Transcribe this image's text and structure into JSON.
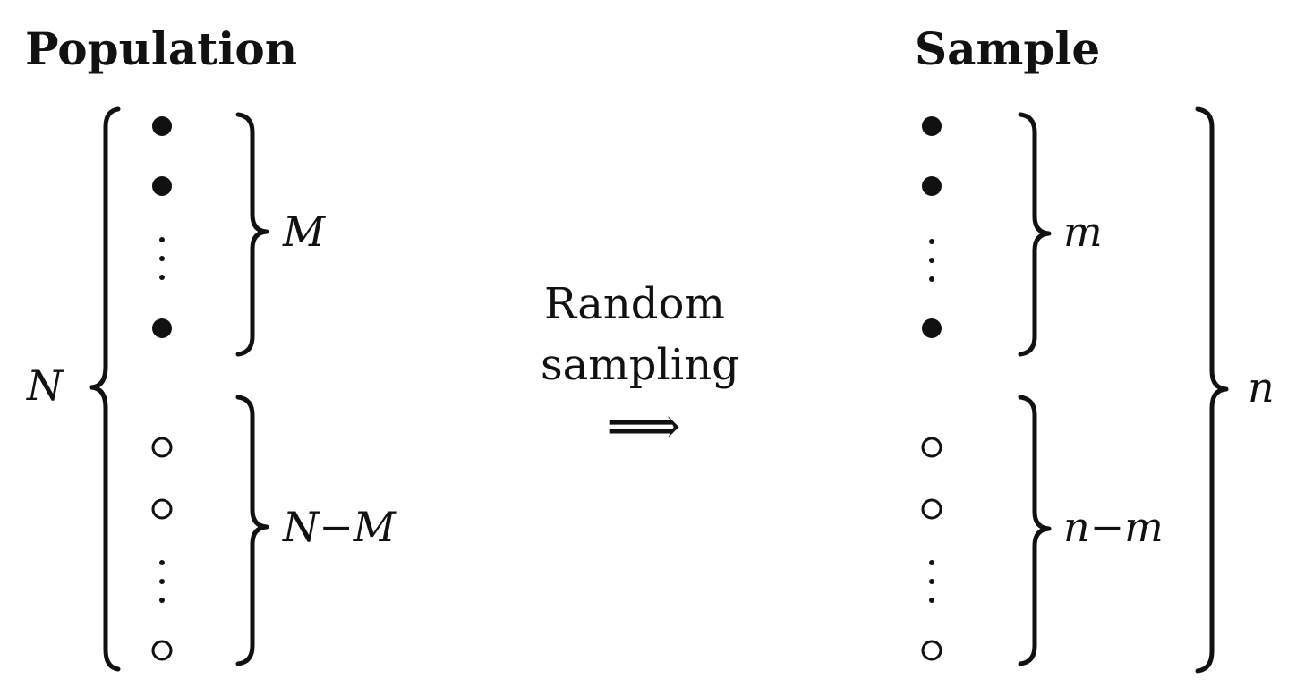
{
  "population": {
    "title": "Population",
    "total_label": "N",
    "group1_label": "M",
    "group2_label": "N−M"
  },
  "sample": {
    "title": "Sample",
    "total_label": "n",
    "group1_label": "m",
    "group2_label": "n−m"
  },
  "process": {
    "line1": "Random",
    "line2": "sampling",
    "arrow": "⟹"
  },
  "markers": {
    "group1": "filled-circle",
    "group2": "open-circle"
  },
  "colors": {
    "ink": "#111111",
    "background": "#ffffff"
  }
}
